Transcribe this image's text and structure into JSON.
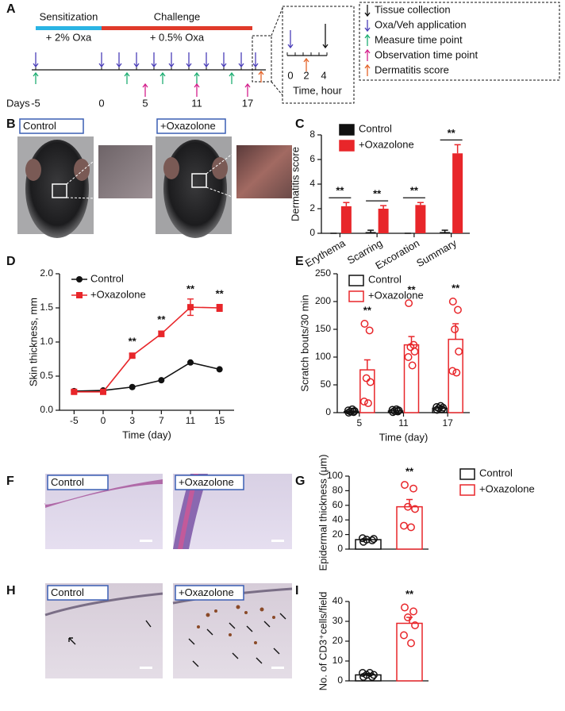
{
  "panel_labels": [
    "A",
    "B",
    "C",
    "D",
    "E",
    "F",
    "G",
    "H",
    "I"
  ],
  "timeline": {
    "phases": [
      {
        "label": "Sensitization",
        "treatment": "+ 2% Oxa",
        "color": "#2ab4e4"
      },
      {
        "label": "Challenge",
        "treatment": "+ 0.5% Oxa",
        "color": "#e03a2a"
      }
    ],
    "days_label": "Days",
    "days": [
      -5,
      0,
      5,
      11,
      17
    ],
    "inset_ticks": [
      0,
      2,
      4
    ],
    "inset_label": "Time, hour",
    "legend": [
      {
        "label": "Tissue collection",
        "color": "#111111"
      },
      {
        "label": "Oxa/Veh application",
        "color": "#4b3fb8"
      },
      {
        "label": "Measure time point",
        "color": "#1fae72"
      },
      {
        "label": "Observation time point",
        "color": "#d4208c"
      },
      {
        "label": "Dermatitis score",
        "color": "#e4642a"
      }
    ]
  },
  "images": {
    "B": [
      "Control",
      "+Oxazolone"
    ],
    "F": [
      "Control",
      "+Oxazolone"
    ],
    "H": [
      "Control",
      "+Oxazolone"
    ]
  },
  "chart_data": [
    {
      "type": "bar",
      "y_label": "Dermatitis score",
      "categories": [
        "Erythema",
        "Scarring",
        "Excoration",
        "Summary"
      ],
      "series": [
        {
          "name": "Control",
          "color": "#111111",
          "values": [
            0,
            0.1,
            0,
            0.1
          ],
          "errors": [
            0,
            0.15,
            0,
            0.15
          ]
        },
        {
          "name": "+Oxazolone",
          "color": "#e8262a",
          "values": [
            2.2,
            2.0,
            2.3,
            6.5
          ],
          "errors": [
            0.3,
            0.25,
            0.2,
            0.7
          ]
        }
      ],
      "annotations": [
        "**",
        "**",
        "**",
        "**"
      ],
      "ylim": [
        0,
        8
      ],
      "yticks": [
        0,
        2,
        4,
        6,
        8
      ],
      "bar_style": "filled",
      "legend": "upper left"
    },
    {
      "type": "line",
      "x_label": "Time (day)",
      "y_label": "Skin thickness, mm",
      "categories": [
        "-5",
        "0",
        "3",
        "7",
        "11",
        "15"
      ],
      "series": [
        {
          "name": "Control",
          "color": "#111111",
          "marker": "circle",
          "values": [
            0.28,
            0.29,
            0.34,
            0.44,
            0.7,
            0.6
          ]
        },
        {
          "name": "+Oxazolone",
          "color": "#e8262a",
          "marker": "square",
          "values": [
            0.27,
            0.27,
            0.8,
            1.12,
            1.51,
            1.5
          ],
          "errors": [
            0.02,
            0.02,
            0.03,
            0.04,
            0.12,
            0.05
          ]
        }
      ],
      "annotations": [
        null,
        null,
        "**",
        "**",
        "**",
        "**"
      ],
      "ylim": [
        0,
        2
      ],
      "yticks": [
        {
          "value": 0,
          "label": "0.0"
        },
        0.5,
        {
          "value": 1,
          "label": "1.0"
        },
        1.5,
        {
          "value": 2,
          "label": "2.0"
        }
      ],
      "legend": "upper left"
    },
    {
      "type": "bar",
      "x_label": "Time (day)",
      "y_label": "Scratch bouts/30 min",
      "categories": [
        "5",
        "11",
        "17"
      ],
      "series": [
        {
          "name": "Control",
          "color": "#111111",
          "values": [
            2,
            3,
            8
          ],
          "errors": [
            1,
            1,
            2
          ],
          "points": [
            [
              0,
              1,
              2,
              3,
              4,
              6
            ],
            [
              1,
              2,
              3,
              4,
              5,
              6
            ],
            [
              5,
              6,
              8,
              9,
              10,
              12
            ]
          ]
        },
        {
          "name": "+Oxazolone",
          "color": "#e8262a",
          "values": [
            77,
            122,
            132
          ],
          "errors": [
            18,
            15,
            28
          ],
          "points": [
            [
              160,
              148,
              62,
              55,
              20,
              17
            ],
            [
              197,
              122,
              118,
              110,
              100,
              85
            ],
            [
              200,
              185,
              150,
              110,
              75,
              72
            ]
          ]
        }
      ],
      "annotations": [
        "**",
        "**",
        "**"
      ],
      "ylim": [
        0,
        250
      ],
      "yticks": [
        0,
        50,
        100,
        150,
        200,
        250
      ],
      "bar_style": "outline",
      "legend": "upper left"
    },
    {
      "type": "bar",
      "y_label": "Epidermal thickness (μm)",
      "series": [
        {
          "name": "Control",
          "color": "#111111",
          "values": [
            13
          ],
          "errors": [
            1
          ],
          "points": [
            [
              10,
              12,
              13,
              14,
              15
            ]
          ]
        },
        {
          "name": "+Oxazolone",
          "color": "#e8262a",
          "values": [
            58
          ],
          "errors": [
            10
          ],
          "points": [
            [
              88,
              83,
              58,
              55,
              32,
              30
            ]
          ]
        }
      ],
      "annotations": [
        "**"
      ],
      "ylim": [
        0,
        100
      ],
      "yticks": [
        0,
        20,
        40,
        60,
        80,
        100
      ],
      "bar_style": "outline",
      "legend": "outside right"
    },
    {
      "type": "bar",
      "y_label": "No. of CD3⁺cells/field",
      "series": [
        {
          "color": "#111111",
          "values": [
            3
          ],
          "errors": [
            0.7
          ],
          "points": [
            [
              2,
              2,
              3,
              3,
              4,
              4
            ]
          ]
        },
        {
          "color": "#e8262a",
          "values": [
            29
          ],
          "errors": [
            3
          ],
          "points": [
            [
              37,
              35,
              32,
              28,
              23,
              19
            ]
          ]
        }
      ],
      "annotations": [
        "**"
      ],
      "ylim": [
        0,
        40
      ],
      "yticks": [
        0,
        10,
        20,
        30,
        40
      ],
      "bar_style": "outline"
    }
  ]
}
